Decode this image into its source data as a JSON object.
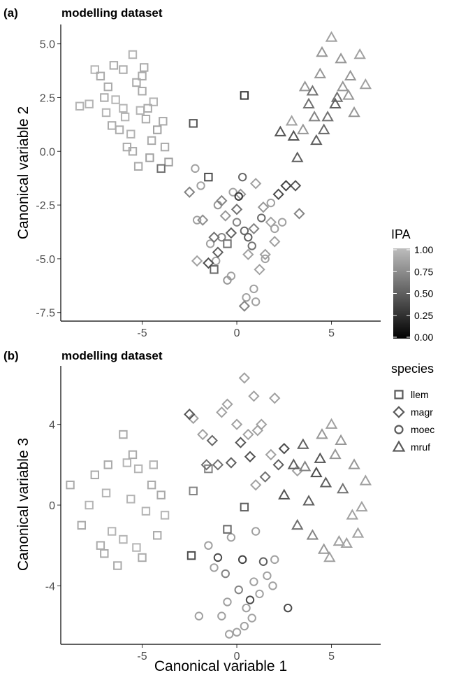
{
  "chart_data": [
    {
      "type": "scatter",
      "panel_tag": "(a)",
      "title": "modelling dataset",
      "xlabel": "",
      "ylabel": "Canonical variable 2",
      "xlim": [
        -9.3,
        7.6
      ],
      "ylim": [
        -7.9,
        5.9
      ],
      "xticks": [
        -5,
        0,
        5
      ],
      "xtick_labels": [
        "-5",
        "0",
        "5"
      ],
      "yticks": [
        5.0,
        2.5,
        0.0,
        -2.5,
        -5.0,
        -7.5
      ],
      "ytick_labels": [
        "5.0",
        "2.5",
        "0.0",
        "-2.5",
        "-5.0",
        "-7.5"
      ],
      "grid": false,
      "series": [
        {
          "species": "llem",
          "shape": "square",
          "x": [
            -6.0,
            -7.5,
            -7.0,
            -6.5,
            -5.5,
            -5.0,
            -6.2,
            -5.8,
            -4.8,
            -4.5,
            -6.8,
            -7.2,
            -5.3,
            -4.2,
            -4.0,
            -3.8,
            -3.6,
            -4.6,
            -6.0,
            -6.6,
            -5.5,
            -5.0,
            -4.7,
            -7.8,
            -8.3,
            -5.9,
            -6.4,
            -5.6,
            -5.1,
            -4.4,
            -3.9,
            -6.9,
            -5.2,
            -4.9
          ],
          "y": [
            2.0,
            3.8,
            2.5,
            4.0,
            4.5,
            2.8,
            1.0,
            0.2,
            1.5,
            0.5,
            3.0,
            3.5,
            3.2,
            1.0,
            -0.8,
            0.2,
            -0.5,
            -0.3,
            3.8,
            1.2,
            0.0,
            3.5,
            2.0,
            2.2,
            2.1,
            1.6,
            2.4,
            0.8,
            1.9,
            2.3,
            1.4,
            1.8,
            -0.7,
            3.9
          ],
          "ipa": [
            0.95,
            0.95,
            0.9,
            0.9,
            0.95,
            0.9,
            0.9,
            0.9,
            0.9,
            0.9,
            0.9,
            0.9,
            0.9,
            0.85,
            0.6,
            0.9,
            0.85,
            0.85,
            0.9,
            0.9,
            0.9,
            0.9,
            0.9,
            0.95,
            0.95,
            0.95,
            0.95,
            0.95,
            0.95,
            0.95,
            0.9,
            0.95,
            0.9,
            0.9
          ]
        },
        {
          "species": "llem",
          "shape": "square",
          "x": [
            0.4,
            -2.3,
            -1.5,
            -1.2,
            -0.5
          ],
          "y": [
            2.6,
            1.3,
            -1.2,
            -5.5,
            -4.3
          ],
          "ipa": [
            0.3,
            0.45,
            0.4,
            0.55,
            0.6
          ]
        },
        {
          "species": "magr",
          "shape": "diamond",
          "x": [
            -2.5,
            -1.8,
            -1.5,
            -0.8,
            0.2,
            1.0,
            1.5,
            2.2,
            2.6,
            3.1,
            3.3,
            -1.2,
            -0.3,
            0.6,
            1.8,
            -2.1,
            0.4,
            1.2,
            2.0,
            -0.6,
            0.9,
            1.4,
            0.0,
            -1.0
          ],
          "y": [
            -1.9,
            -3.2,
            -5.2,
            -2.3,
            -2.0,
            -1.5,
            -4.8,
            -2.0,
            -1.6,
            -1.6,
            -2.9,
            -4.0,
            -3.8,
            -4.8,
            -3.3,
            -5.1,
            -7.2,
            -5.5,
            -4.2,
            -3.0,
            -3.6,
            -2.6,
            -2.7,
            -4.7
          ],
          "ipa": [
            0.7,
            0.75,
            0.4,
            0.7,
            0.8,
            0.85,
            0.85,
            0.4,
            0.35,
            0.45,
            0.7,
            0.6,
            0.5,
            0.85,
            0.85,
            0.85,
            0.7,
            0.85,
            0.85,
            0.8,
            0.7,
            0.8,
            0.6,
            0.5
          ]
        },
        {
          "species": "moec",
          "shape": "circle",
          "x": [
            -1.9,
            -2.2,
            -1.0,
            -0.5,
            0.0,
            0.5,
            1.0,
            1.5,
            2.0,
            0.3,
            -0.8,
            0.8,
            1.3,
            -0.3,
            0.6,
            -2.1,
            -1.4,
            0.1,
            1.8,
            2.4,
            -0.2,
            0.9,
            0.4,
            -1.1
          ],
          "y": [
            -1.6,
            -0.8,
            -2.5,
            -6.0,
            -3.3,
            -6.8,
            -7.0,
            -5.0,
            -3.6,
            -1.2,
            -4.0,
            -4.4,
            -3.1,
            -5.8,
            -4.0,
            -3.2,
            -4.3,
            -2.1,
            -2.4,
            -3.3,
            -1.9,
            -6.4,
            -3.7,
            -5.1
          ],
          "ipa": [
            0.85,
            0.85,
            0.8,
            0.8,
            0.7,
            0.85,
            0.85,
            0.85,
            0.85,
            0.55,
            0.7,
            0.6,
            0.55,
            0.85,
            0.5,
            0.85,
            0.85,
            0.3,
            0.85,
            0.85,
            0.85,
            0.85,
            0.55,
            0.85
          ]
        },
        {
          "species": "mruf",
          "shape": "triangle",
          "x": [
            5.0,
            4.5,
            5.5,
            6.0,
            6.5,
            4.0,
            3.5,
            4.2,
            3.0,
            3.2,
            2.3,
            5.2,
            4.8,
            6.2,
            5.6,
            4.4,
            3.8,
            6.8,
            5.9,
            4.6,
            5.3,
            4.1,
            3.6,
            2.9
          ],
          "y": [
            5.3,
            4.6,
            4.3,
            3.5,
            4.5,
            2.8,
            1.0,
            0.5,
            0.7,
            -0.3,
            0.9,
            2.2,
            1.6,
            1.8,
            3.0,
            3.6,
            2.2,
            3.1,
            2.6,
            1.0,
            2.5,
            1.6,
            3.0,
            1.4
          ],
          "ipa": [
            0.85,
            0.8,
            0.8,
            0.8,
            0.85,
            0.6,
            0.8,
            0.5,
            0.45,
            0.5,
            0.45,
            0.5,
            0.6,
            0.8,
            0.8,
            0.8,
            0.6,
            0.85,
            0.8,
            0.55,
            0.6,
            0.7,
            0.8,
            0.85
          ]
        }
      ]
    },
    {
      "type": "scatter",
      "panel_tag": "(b)",
      "title": "modelling dataset",
      "xlabel": "Canonical variable 1",
      "ylabel": "Canonical variable 3",
      "xlim": [
        -9.3,
        7.6
      ],
      "ylim": [
        -6.9,
        6.9
      ],
      "xticks": [
        -5,
        0,
        5
      ],
      "xtick_labels": [
        "-5",
        "0",
        "5"
      ],
      "yticks": [
        4,
        0,
        -4
      ],
      "ytick_labels": [
        "4",
        "0",
        "-4"
      ],
      "grid": false,
      "series": [
        {
          "species": "llem",
          "shape": "square",
          "x": [
            -6.0,
            -8.8,
            -8.2,
            -7.5,
            -6.8,
            -5.5,
            -4.5,
            -4.0,
            -4.2,
            -5.0,
            -6.3,
            -7.2,
            -5.8,
            -4.8,
            -6.6,
            -5.2,
            -7.8,
            -6.0,
            -4.4,
            -5.6,
            -6.9,
            -7.0,
            -3.8,
            -5.3
          ],
          "y": [
            3.5,
            1.0,
            -1.0,
            1.5,
            2.0,
            2.5,
            1.0,
            0.5,
            -1.5,
            -2.6,
            -3.0,
            -2.0,
            2.1,
            -0.3,
            -1.3,
            1.8,
            0.0,
            -1.7,
            2.0,
            0.3,
            0.6,
            -2.4,
            -0.5,
            -2.1
          ],
          "ipa": [
            0.9,
            0.9,
            0.9,
            0.9,
            0.9,
            0.9,
            0.9,
            0.9,
            0.9,
            0.9,
            0.9,
            0.9,
            0.95,
            0.95,
            0.95,
            0.95,
            0.95,
            0.95,
            0.95,
            0.95,
            0.95,
            0.9,
            0.95,
            0.95
          ]
        },
        {
          "species": "llem",
          "shape": "square",
          "x": [
            -1.5,
            -2.3,
            -0.5,
            0.4,
            -2.4
          ],
          "y": [
            1.8,
            0.7,
            -1.2,
            -0.1,
            -2.5
          ],
          "ipa": [
            0.7,
            0.7,
            0.55,
            0.5,
            0.4
          ]
        },
        {
          "species": "magr",
          "shape": "diamond",
          "x": [
            0.4,
            -2.5,
            -2.3,
            -1.8,
            -1.0,
            -0.5,
            0.0,
            0.6,
            1.3,
            1.8,
            2.2,
            2.5,
            3.2,
            1.0,
            -1.3,
            -0.3,
            0.9,
            1.5,
            -0.8,
            0.2,
            2.0,
            -1.6,
            0.7,
            1.1
          ],
          "y": [
            6.3,
            4.5,
            4.3,
            3.5,
            2.0,
            5.0,
            4.0,
            3.5,
            4.0,
            2.5,
            2.0,
            2.8,
            1.7,
            1.0,
            3.2,
            2.1,
            5.4,
            1.4,
            4.6,
            3.1,
            5.3,
            2.0,
            2.4,
            3.7
          ],
          "ipa": [
            0.85,
            0.45,
            0.85,
            0.85,
            0.6,
            0.85,
            0.85,
            0.85,
            0.85,
            0.85,
            0.5,
            0.4,
            0.85,
            0.85,
            0.55,
            0.5,
            0.85,
            0.6,
            0.85,
            0.45,
            0.85,
            0.6,
            0.4,
            0.85
          ]
        },
        {
          "species": "moec",
          "shape": "circle",
          "x": [
            -1.5,
            -1.2,
            -0.8,
            -0.4,
            0.0,
            0.4,
            0.8,
            1.2,
            1.6,
            2.0,
            2.7,
            -1.0,
            -0.6,
            0.3,
            0.7,
            0.1,
            -0.3,
            1.0,
            1.4,
            -2.0,
            -0.5,
            0.5,
            1.9,
            0.9
          ],
          "y": [
            -2.0,
            -3.1,
            -5.5,
            -6.4,
            -6.3,
            -6.0,
            -5.6,
            -4.4,
            -3.5,
            -2.7,
            -5.1,
            -2.6,
            -3.4,
            -2.7,
            -4.7,
            -4.2,
            -1.6,
            -1.3,
            -2.8,
            -5.5,
            -4.8,
            -5.1,
            -4.0,
            -3.8
          ],
          "ipa": [
            0.85,
            0.85,
            0.85,
            0.85,
            0.85,
            0.85,
            0.85,
            0.85,
            0.85,
            0.85,
            0.4,
            0.4,
            0.7,
            0.35,
            0.4,
            0.7,
            0.85,
            0.85,
            0.5,
            0.85,
            0.85,
            0.85,
            0.85,
            0.85
          ]
        },
        {
          "species": "mruf",
          "shape": "triangle",
          "x": [
            5.0,
            4.5,
            5.5,
            6.2,
            6.8,
            3.5,
            3.0,
            2.5,
            4.0,
            4.6,
            5.8,
            6.4,
            4.2,
            5.2,
            3.8,
            4.9,
            5.6,
            6.1,
            4.4,
            3.2,
            5.4,
            4.7,
            3.6,
            6.6
          ],
          "y": [
            4.0,
            3.5,
            3.2,
            2.0,
            1.2,
            3.0,
            2.0,
            0.5,
            -1.5,
            -2.2,
            -1.9,
            -1.4,
            1.6,
            2.5,
            0.2,
            -2.6,
            0.8,
            -0.5,
            2.3,
            -1.0,
            -1.8,
            1.1,
            1.9,
            -0.1
          ],
          "ipa": [
            0.85,
            0.8,
            0.8,
            0.8,
            0.85,
            0.5,
            0.5,
            0.45,
            0.7,
            0.8,
            0.85,
            0.85,
            0.4,
            0.8,
            0.5,
            0.85,
            0.6,
            0.85,
            0.45,
            0.6,
            0.85,
            0.5,
            0.7,
            0.85
          ]
        }
      ]
    }
  ],
  "legends": {
    "ipa": {
      "title": "IPA",
      "breaks": [
        "1.00",
        "0.75",
        "0.50",
        "0.25",
        "0.00"
      ],
      "colors": [
        "#000000",
        "#bdbdbd"
      ]
    },
    "species": {
      "title": "species",
      "items": [
        {
          "label": "llem",
          "shape": "square"
        },
        {
          "label": "magr",
          "shape": "diamond"
        },
        {
          "label": "moec",
          "shape": "circle"
        },
        {
          "label": "mruf",
          "shape": "triangle"
        }
      ],
      "color": "#595959"
    }
  }
}
